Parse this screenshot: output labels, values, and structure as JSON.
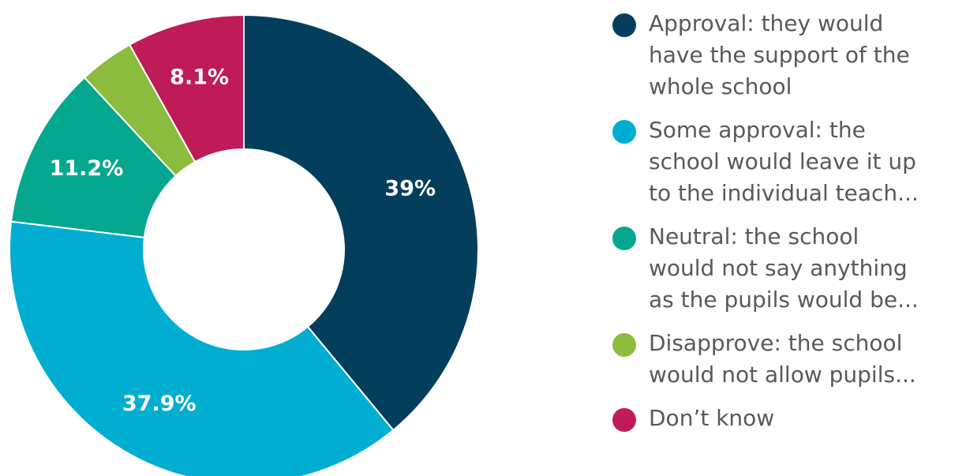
{
  "chart_data": {
    "type": "pie",
    "donut": true,
    "legend_position": "right",
    "slices": [
      {
        "label": "Approval: they would\nhave the support of the\nwhole school",
        "value": 39.0,
        "value_label": "39%",
        "color": "#033f5c"
      },
      {
        "label": "Some approval: the\nschool would leave it up\nto the individual teach...",
        "value": 37.9,
        "value_label": "37.9%",
        "color": "#01aed2"
      },
      {
        "label": "Neutral: the school\nwould not say anything\nas the pupils would be...",
        "value": 11.2,
        "value_label": "11.2%",
        "color": "#05a88f"
      },
      {
        "label": "Disapprove: the school\nwould not allow pupils...",
        "value": 3.8,
        "value_label": "",
        "color": "#8cbc3d"
      },
      {
        "label": "Don’t know",
        "value": 8.1,
        "value_label": "8.1%",
        "color": "#bf1b59"
      }
    ]
  }
}
